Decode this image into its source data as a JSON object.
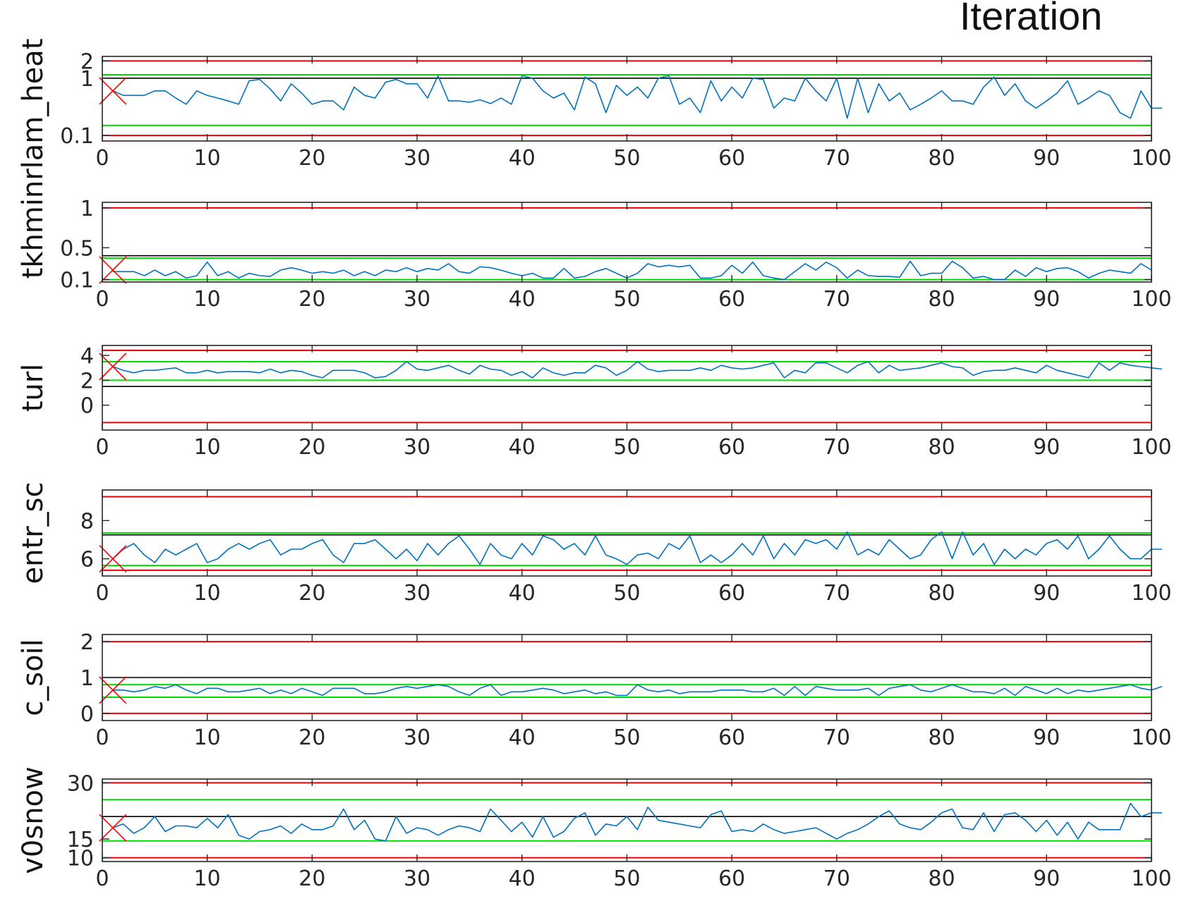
{
  "figure": {
    "title": "Iteration",
    "colors": {
      "series": "#0072BD",
      "upper_bound_red": "#e8000b",
      "green_band": "#00dd00",
      "reference_black": "#000000",
      "marker": "#ff0000",
      "axis": "#262626"
    }
  },
  "chart_data": [
    {
      "type": "line",
      "ylabel": "tkhminrlam_heat",
      "yscale": "log",
      "xlim": [
        0,
        100
      ],
      "ylim": [
        0.08,
        2.4
      ],
      "xticks": [
        0,
        10,
        20,
        30,
        40,
        50,
        60,
        70,
        80,
        90,
        100
      ],
      "xtick_labels": [
        "0",
        "10",
        "20",
        "30",
        "40",
        "50",
        "60",
        "70",
        "80",
        "90",
        "100"
      ],
      "yticks": [
        0.1,
        1,
        2
      ],
      "ytick_labels": [
        "0.1",
        "1",
        "2"
      ],
      "red_lines": [
        0.1,
        2
      ],
      "green_lines": [
        0.15,
        1.15
      ],
      "black_line": 1,
      "marker": {
        "x": 1,
        "y": 0.6
      },
      "series": [
        {
          "values": [
            0.6,
            0.5,
            0.5,
            0.5,
            0.6,
            0.6,
            0.45,
            0.35,
            0.6,
            0.5,
            0.45,
            0.4,
            0.35,
            0.9,
            0.95,
            0.65,
            0.4,
            0.8,
            0.55,
            0.35,
            0.4,
            0.4,
            0.28,
            0.7,
            0.5,
            0.45,
            0.85,
            0.95,
            0.8,
            0.8,
            0.45,
            1.1,
            0.4,
            0.4,
            0.38,
            0.42,
            0.36,
            0.45,
            0.35,
            1.1,
            1.0,
            0.6,
            0.45,
            0.55,
            0.28,
            1.05,
            0.8,
            0.25,
            0.75,
            0.5,
            0.7,
            0.45,
            1.0,
            1.1,
            0.35,
            0.45,
            0.25,
            0.9,
            0.4,
            0.7,
            0.45,
            1.0,
            0.95,
            0.3,
            0.45,
            0.4,
            1.0,
            0.6,
            0.4,
            1.0,
            0.2,
            1.0,
            0.25,
            0.8,
            0.4,
            0.55,
            0.28,
            0.35,
            0.45,
            0.6,
            0.4,
            0.4,
            0.35,
            0.7,
            1.05,
            0.5,
            0.8,
            0.4,
            0.3,
            0.4,
            0.55,
            0.9,
            0.35,
            0.45,
            0.6,
            0.5,
            0.25,
            0.2,
            0.6,
            0.3,
            0.3
          ]
        }
      ]
    },
    {
      "type": "line",
      "ylabel": "",
      "yscale": "linear",
      "xlim": [
        0,
        100
      ],
      "ylim": [
        0.07,
        1.07
      ],
      "xticks": [
        0,
        10,
        20,
        30,
        40,
        50,
        60,
        70,
        80,
        90,
        100
      ],
      "xtick_labels": [
        "0",
        "10",
        "20",
        "30",
        "40",
        "50",
        "60",
        "70",
        "80",
        "90",
        "100"
      ],
      "yticks": [
        0.1,
        0.5,
        1
      ],
      "ytick_labels": [
        "0.1",
        "0.5",
        "1"
      ],
      "red_lines": [
        1
      ],
      "green_lines": [
        0.1,
        0.37
      ],
      "black_line": 0.4,
      "marker": {
        "x": 1,
        "y": 0.22
      },
      "series": [
        {
          "values": [
            0.2,
            0.2,
            0.2,
            0.15,
            0.22,
            0.15,
            0.2,
            0.12,
            0.15,
            0.32,
            0.15,
            0.2,
            0.12,
            0.18,
            0.15,
            0.14,
            0.22,
            0.25,
            0.22,
            0.18,
            0.2,
            0.18,
            0.22,
            0.15,
            0.2,
            0.15,
            0.22,
            0.2,
            0.25,
            0.2,
            0.24,
            0.22,
            0.3,
            0.2,
            0.18,
            0.26,
            0.25,
            0.22,
            0.18,
            0.15,
            0.18,
            0.12,
            0.12,
            0.24,
            0.12,
            0.14,
            0.2,
            0.24,
            0.18,
            0.12,
            0.18,
            0.3,
            0.26,
            0.28,
            0.26,
            0.28,
            0.12,
            0.12,
            0.15,
            0.28,
            0.18,
            0.32,
            0.15,
            0.12,
            0.1,
            0.2,
            0.3,
            0.22,
            0.32,
            0.25,
            0.12,
            0.22,
            0.15,
            0.14,
            0.14,
            0.13,
            0.33,
            0.15,
            0.18,
            0.18,
            0.33,
            0.25,
            0.12,
            0.14,
            0.1,
            0.1,
            0.22,
            0.14,
            0.25,
            0.2,
            0.24,
            0.25,
            0.2,
            0.12,
            0.18,
            0.22,
            0.2,
            0.18,
            0.3,
            0.22
          ]
        }
      ]
    },
    {
      "type": "line",
      "ylabel": "turl",
      "yscale": "linear",
      "xlim": [
        0,
        100
      ],
      "ylim": [
        -2.0,
        4.8
      ],
      "xticks": [
        0,
        10,
        20,
        30,
        40,
        50,
        60,
        70,
        80,
        90,
        100
      ],
      "xtick_labels": [
        "0",
        "10",
        "20",
        "30",
        "40",
        "50",
        "60",
        "70",
        "80",
        "90",
        "100"
      ],
      "yticks": [
        0,
        2,
        4
      ],
      "ytick_labels": [
        "0",
        "2",
        "4"
      ],
      "red_lines": [
        -1.4,
        4.4
      ],
      "green_lines": [
        2.0,
        3.5
      ],
      "black_line": 1.5,
      "marker": {
        "x": 1,
        "y": 3.1
      },
      "series": [
        {
          "values": [
            3.1,
            2.8,
            2.6,
            2.8,
            2.8,
            2.9,
            3.0,
            2.6,
            2.6,
            2.8,
            2.6,
            2.7,
            2.7,
            2.7,
            2.6,
            2.9,
            2.6,
            2.8,
            2.7,
            2.4,
            2.2,
            2.8,
            2.8,
            2.8,
            2.6,
            2.2,
            2.3,
            2.8,
            3.5,
            2.9,
            2.8,
            3.0,
            3.2,
            2.8,
            2.5,
            3.2,
            2.9,
            2.8,
            2.4,
            2.7,
            2.2,
            3.0,
            2.6,
            2.4,
            2.6,
            2.6,
            3.2,
            3.0,
            2.4,
            2.8,
            3.5,
            2.9,
            2.7,
            2.8,
            2.8,
            2.8,
            3.0,
            2.8,
            3.2,
            3.0,
            2.9,
            3.0,
            3.2,
            3.4,
            2.2,
            2.8,
            2.6,
            3.4,
            3.4,
            3.0,
            2.6,
            3.2,
            3.5,
            2.6,
            3.2,
            2.8,
            2.9,
            3.0,
            3.2,
            3.4,
            3.1,
            3.0,
            2.4,
            2.7,
            2.8,
            2.8,
            3.0,
            2.8,
            2.6,
            3.2,
            2.8,
            2.6,
            2.4,
            2.2,
            3.4,
            2.8,
            3.4,
            3.2,
            3.1,
            3.0,
            2.9
          ]
        }
      ]
    },
    {
      "type": "line",
      "ylabel": "entr_sc",
      "yscale": "linear",
      "xlim": [
        0,
        100
      ],
      "ylim": [
        5.1,
        9.6
      ],
      "xticks": [
        0,
        10,
        20,
        30,
        40,
        50,
        60,
        70,
        80,
        90,
        100
      ],
      "xtick_labels": [
        "0",
        "10",
        "20",
        "30",
        "40",
        "50",
        "60",
        "70",
        "80",
        "90",
        "100"
      ],
      "yticks": [
        6,
        8
      ],
      "ytick_labels": [
        "6",
        "8"
      ],
      "red_lines": [
        5.4,
        9.25
      ],
      "green_lines": [
        5.65,
        7.35
      ],
      "black_line": 7.25,
      "marker": {
        "x": 1,
        "y": 6.0
      },
      "series": [
        {
          "values": [
            6.0,
            6.5,
            6.8,
            6.2,
            5.8,
            6.5,
            6.2,
            6.5,
            6.8,
            5.8,
            6.0,
            6.5,
            6.8,
            6.5,
            6.8,
            7.0,
            6.2,
            6.5,
            6.5,
            6.8,
            7.0,
            6.2,
            5.8,
            6.8,
            6.8,
            7.0,
            6.5,
            6.0,
            6.5,
            5.9,
            6.8,
            6.2,
            6.8,
            7.2,
            6.5,
            5.7,
            6.8,
            6.2,
            6.0,
            6.8,
            6.2,
            7.2,
            7.0,
            6.5,
            6.8,
            6.2,
            7.2,
            6.2,
            6.0,
            5.7,
            6.2,
            6.3,
            6.0,
            6.8,
            6.5,
            7.2,
            5.8,
            6.2,
            5.8,
            6.2,
            6.8,
            6.2,
            7.2,
            6.0,
            6.8,
            6.2,
            7.0,
            6.8,
            7.0,
            6.5,
            7.4,
            6.2,
            6.5,
            6.2,
            7.0,
            6.5,
            6.0,
            6.2,
            7.0,
            7.4,
            6.0,
            7.4,
            6.2,
            6.8,
            5.7,
            6.5,
            6.0,
            6.5,
            6.2,
            6.8,
            7.0,
            6.5,
            7.2,
            6.0,
            6.5,
            7.2,
            6.5,
            6.0,
            6.0,
            6.5,
            6.5
          ]
        }
      ]
    },
    {
      "type": "line",
      "ylabel": "c_soil",
      "yscale": "linear",
      "xlim": [
        0,
        100
      ],
      "ylim": [
        -0.2,
        2.2
      ],
      "xticks": [
        0,
        10,
        20,
        30,
        40,
        50,
        60,
        70,
        80,
        90,
        100
      ],
      "xtick_labels": [
        "0",
        "10",
        "20",
        "30",
        "40",
        "50",
        "60",
        "70",
        "80",
        "90",
        "100"
      ],
      "yticks": [
        0,
        1,
        2
      ],
      "ytick_labels": [
        "0",
        "1",
        "2"
      ],
      "red_lines": [
        0,
        2
      ],
      "green_lines": [
        0.45,
        0.8
      ],
      "black_line": 1,
      "marker": {
        "x": 1,
        "y": 0.65
      },
      "series": [
        {
          "values": [
            0.65,
            0.65,
            0.6,
            0.65,
            0.75,
            0.7,
            0.8,
            0.65,
            0.55,
            0.7,
            0.7,
            0.6,
            0.6,
            0.65,
            0.7,
            0.55,
            0.65,
            0.55,
            0.7,
            0.6,
            0.5,
            0.7,
            0.7,
            0.7,
            0.55,
            0.55,
            0.6,
            0.7,
            0.75,
            0.7,
            0.75,
            0.8,
            0.75,
            0.6,
            0.5,
            0.7,
            0.8,
            0.5,
            0.6,
            0.6,
            0.65,
            0.7,
            0.65,
            0.55,
            0.6,
            0.65,
            0.55,
            0.6,
            0.5,
            0.5,
            0.8,
            0.65,
            0.6,
            0.65,
            0.55,
            0.6,
            0.6,
            0.6,
            0.65,
            0.65,
            0.65,
            0.6,
            0.6,
            0.7,
            0.5,
            0.75,
            0.5,
            0.75,
            0.7,
            0.65,
            0.65,
            0.65,
            0.7,
            0.5,
            0.7,
            0.75,
            0.8,
            0.65,
            0.6,
            0.7,
            0.8,
            0.7,
            0.6,
            0.6,
            0.55,
            0.7,
            0.5,
            0.75,
            0.65,
            0.55,
            0.7,
            0.55,
            0.65,
            0.6,
            0.65,
            0.7,
            0.75,
            0.8,
            0.7,
            0.65,
            0.75
          ]
        }
      ]
    },
    {
      "type": "line",
      "ylabel": "v0snow",
      "yscale": "linear",
      "xlim": [
        0,
        100
      ],
      "ylim": [
        9,
        31
      ],
      "xticks": [
        0,
        10,
        20,
        30,
        40,
        50,
        60,
        70,
        80,
        90,
        100
      ],
      "xtick_labels": [
        "0",
        "10",
        "20",
        "30",
        "40",
        "50",
        "60",
        "70",
        "80",
        "90",
        "100"
      ],
      "yticks": [
        10,
        15,
        30
      ],
      "ytick_labels": [
        "10",
        "15",
        "30"
      ],
      "red_lines": [
        10,
        30
      ],
      "green_lines": [
        14.5,
        25.5
      ],
      "black_line": 21,
      "marker": {
        "x": 1,
        "y": 18.0
      },
      "series": [
        {
          "values": [
            18.0,
            19.0,
            16.5,
            18.0,
            21.0,
            17.0,
            18.5,
            18.5,
            18.0,
            20.5,
            18.0,
            21.5,
            16.0,
            15.0,
            17.0,
            17.5,
            18.5,
            16.5,
            19.0,
            17.5,
            17.5,
            18.5,
            23.0,
            17.5,
            20.0,
            15.0,
            14.5,
            21.0,
            16.5,
            18.0,
            17.5,
            16.0,
            17.5,
            18.5,
            18.0,
            17.0,
            23.0,
            20.0,
            17.0,
            19.5,
            15.5,
            21.0,
            15.5,
            17.0,
            20.5,
            22.0,
            16.0,
            19.0,
            18.5,
            21.0,
            17.5,
            23.5,
            20.0,
            19.5,
            19.0,
            18.5,
            18.0,
            21.5,
            22.5,
            17.0,
            17.5,
            17.0,
            19.0,
            17.5,
            16.5,
            17.0,
            17.5,
            18.0,
            16.5,
            15.0,
            16.5,
            17.5,
            19.0,
            21.0,
            22.5,
            19.0,
            18.0,
            17.5,
            19.5,
            22.0,
            23.0,
            18.0,
            17.5,
            22.0,
            17.0,
            21.5,
            22.0,
            20.0,
            17.0,
            20.0,
            16.0,
            19.5,
            15.0,
            19.5,
            17.5,
            17.5,
            17.5,
            24.5,
            21.0,
            22.0,
            22.0
          ]
        }
      ]
    }
  ]
}
